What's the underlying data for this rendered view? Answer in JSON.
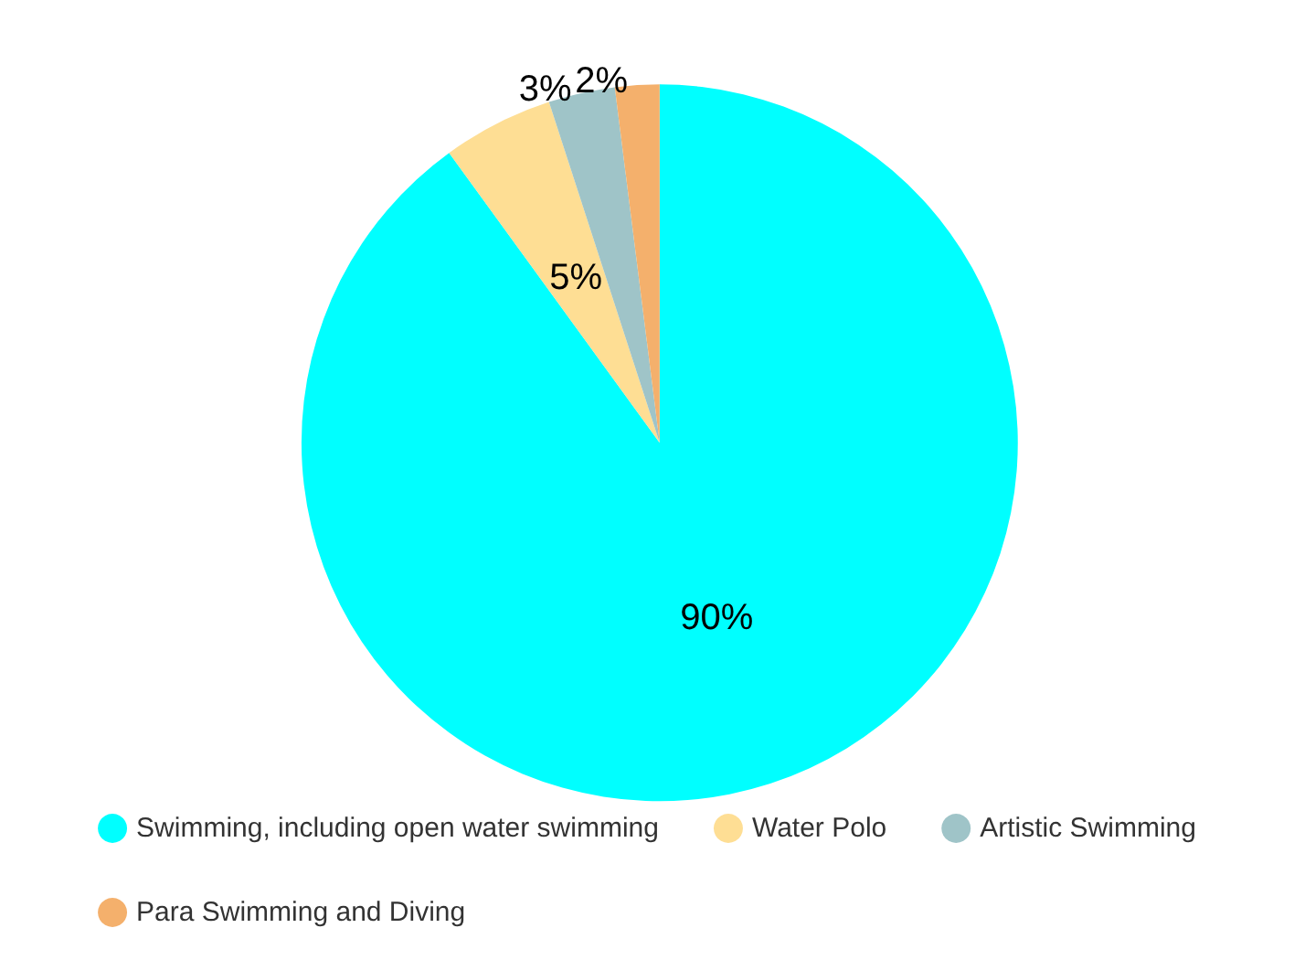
{
  "chart_data": {
    "type": "pie",
    "categories": [
      "Swimming, including open water swimming",
      "Water Polo",
      "Artistic Swimming",
      "Para Swimming and Diving"
    ],
    "values": [
      90,
      5,
      3,
      2
    ],
    "value_labels": [
      "90%",
      "5%",
      "3%",
      "2%"
    ],
    "colors": [
      "#00ffff",
      "#fede94",
      "#9fc4c8",
      "#f4b06c"
    ],
    "legend": "bottom"
  }
}
